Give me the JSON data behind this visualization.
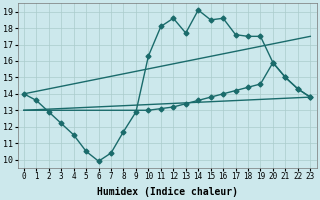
{
  "xlabel": "Humidex (Indice chaleur)",
  "x_ticks": [
    0,
    1,
    2,
    3,
    4,
    5,
    6,
    7,
    8,
    9,
    10,
    11,
    12,
    13,
    14,
    15,
    16,
    17,
    18,
    19,
    20,
    21,
    22,
    23
  ],
  "xlim": [
    -0.5,
    23.5
  ],
  "ylim": [
    9.5,
    19.5
  ],
  "y_ticks": [
    10,
    11,
    12,
    13,
    14,
    15,
    16,
    17,
    18,
    19
  ],
  "bg_color": "#cce8ec",
  "grid_color": "#aacccc",
  "line_color": "#1a6b6b",
  "line1": [
    14.0,
    13.6,
    12.9,
    12.2,
    11.5,
    10.5,
    9.9,
    10.4,
    11.7,
    12.9,
    16.3,
    18.1,
    18.6,
    17.7,
    19.1,
    18.5,
    18.6,
    17.6,
    17.5,
    17.5,
    15.9,
    15.0,
    14.3,
    13.8
  ],
  "line2_x": [
    0,
    23
  ],
  "line2_y": [
    14.0,
    17.5
  ],
  "line3_x": [
    0,
    23
  ],
  "line3_y": [
    13.0,
    13.8
  ],
  "line4_x": [
    0,
    10,
    11,
    12,
    13,
    14,
    15,
    16,
    17,
    18,
    19,
    20,
    21,
    22,
    23
  ],
  "line4_y": [
    13.0,
    13.0,
    13.1,
    13.2,
    13.4,
    13.6,
    13.8,
    14.0,
    14.2,
    14.4,
    14.6,
    15.9,
    15.0,
    14.3,
    13.8
  ],
  "marker_size": 2.5,
  "linewidth": 1.0,
  "font_size_label": 7,
  "font_size_tick": 6
}
